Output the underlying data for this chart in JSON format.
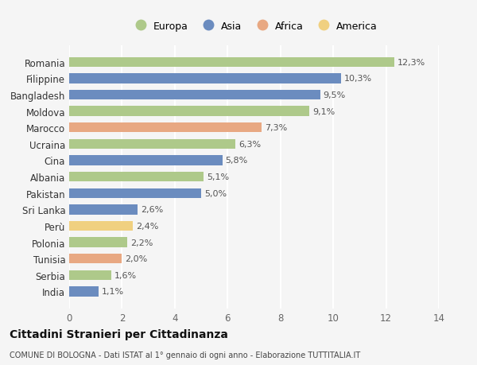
{
  "countries": [
    "Romania",
    "Filippine",
    "Bangladesh",
    "Moldova",
    "Marocco",
    "Ucraina",
    "Cina",
    "Albania",
    "Pakistan",
    "Sri Lanka",
    "Perù",
    "Polonia",
    "Tunisia",
    "Serbia",
    "India"
  ],
  "values": [
    12.3,
    10.3,
    9.5,
    9.1,
    7.3,
    6.3,
    5.8,
    5.1,
    5.0,
    2.6,
    2.4,
    2.2,
    2.0,
    1.6,
    1.1
  ],
  "labels": [
    "12,3%",
    "10,3%",
    "9,5%",
    "9,1%",
    "7,3%",
    "6,3%",
    "5,8%",
    "5,1%",
    "5,0%",
    "2,6%",
    "2,4%",
    "2,2%",
    "2,0%",
    "1,6%",
    "1,1%"
  ],
  "continents": [
    "Europa",
    "Asia",
    "Asia",
    "Europa",
    "Africa",
    "Europa",
    "Asia",
    "Europa",
    "Asia",
    "Asia",
    "America",
    "Europa",
    "Africa",
    "Europa",
    "Asia"
  ],
  "continent_colors": {
    "Europa": "#aec98a",
    "Asia": "#6b8cbf",
    "Africa": "#e8a882",
    "America": "#f0d080"
  },
  "legend_order": [
    "Europa",
    "Asia",
    "Africa",
    "America"
  ],
  "title": "Cittadini Stranieri per Cittadinanza",
  "subtitle": "COMUNE DI BOLOGNA - Dati ISTAT al 1° gennaio di ogni anno - Elaborazione TUTTITALIA.IT",
  "xlim": [
    0,
    14
  ],
  "xticks": [
    0,
    2,
    4,
    6,
    8,
    10,
    12,
    14
  ],
  "background_color": "#f5f5f5",
  "grid_color": "#ffffff",
  "bar_height": 0.6
}
